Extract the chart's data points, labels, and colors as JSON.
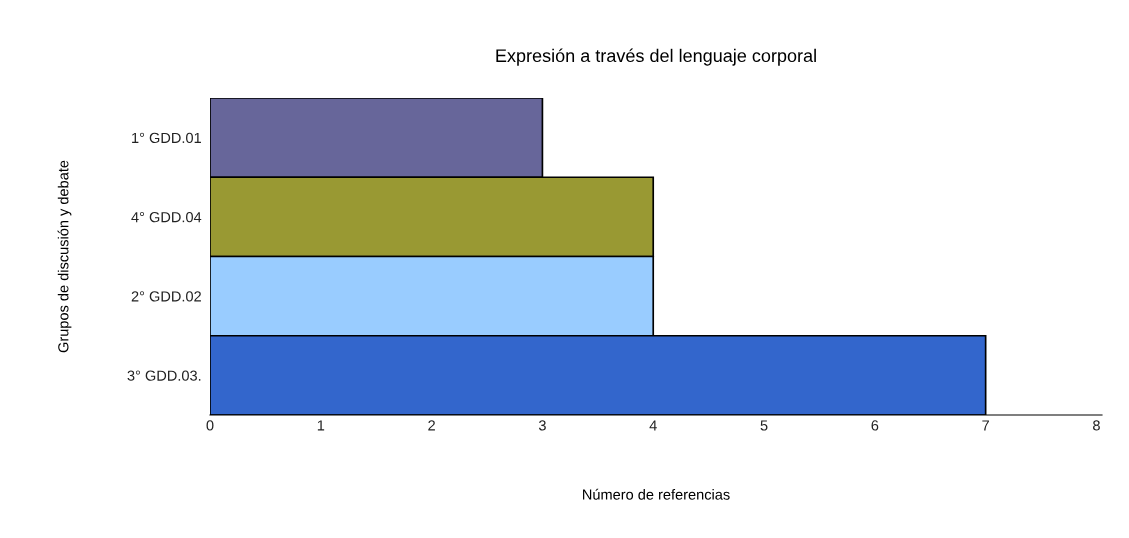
{
  "chart_data": {
    "type": "bar",
    "orientation": "horizontal",
    "title": "Expresión a través del lenguaje corporal",
    "xlabel": "Número de referencias",
    "ylabel": "Grupos de discusión y debate",
    "categories": [
      "1° GDD.01",
      "4° GDD.04",
      "2° GDD.02",
      "3° GDD.03."
    ],
    "values": [
      3,
      4,
      4,
      7
    ],
    "colors": [
      "#67669a",
      "#999933",
      "#99ccff",
      "#3366cc"
    ],
    "xlim": [
      0,
      8.05
    ],
    "xticks": [
      0,
      1,
      2,
      3,
      4,
      5,
      6,
      7,
      8
    ],
    "grid": false,
    "legend": false
  }
}
